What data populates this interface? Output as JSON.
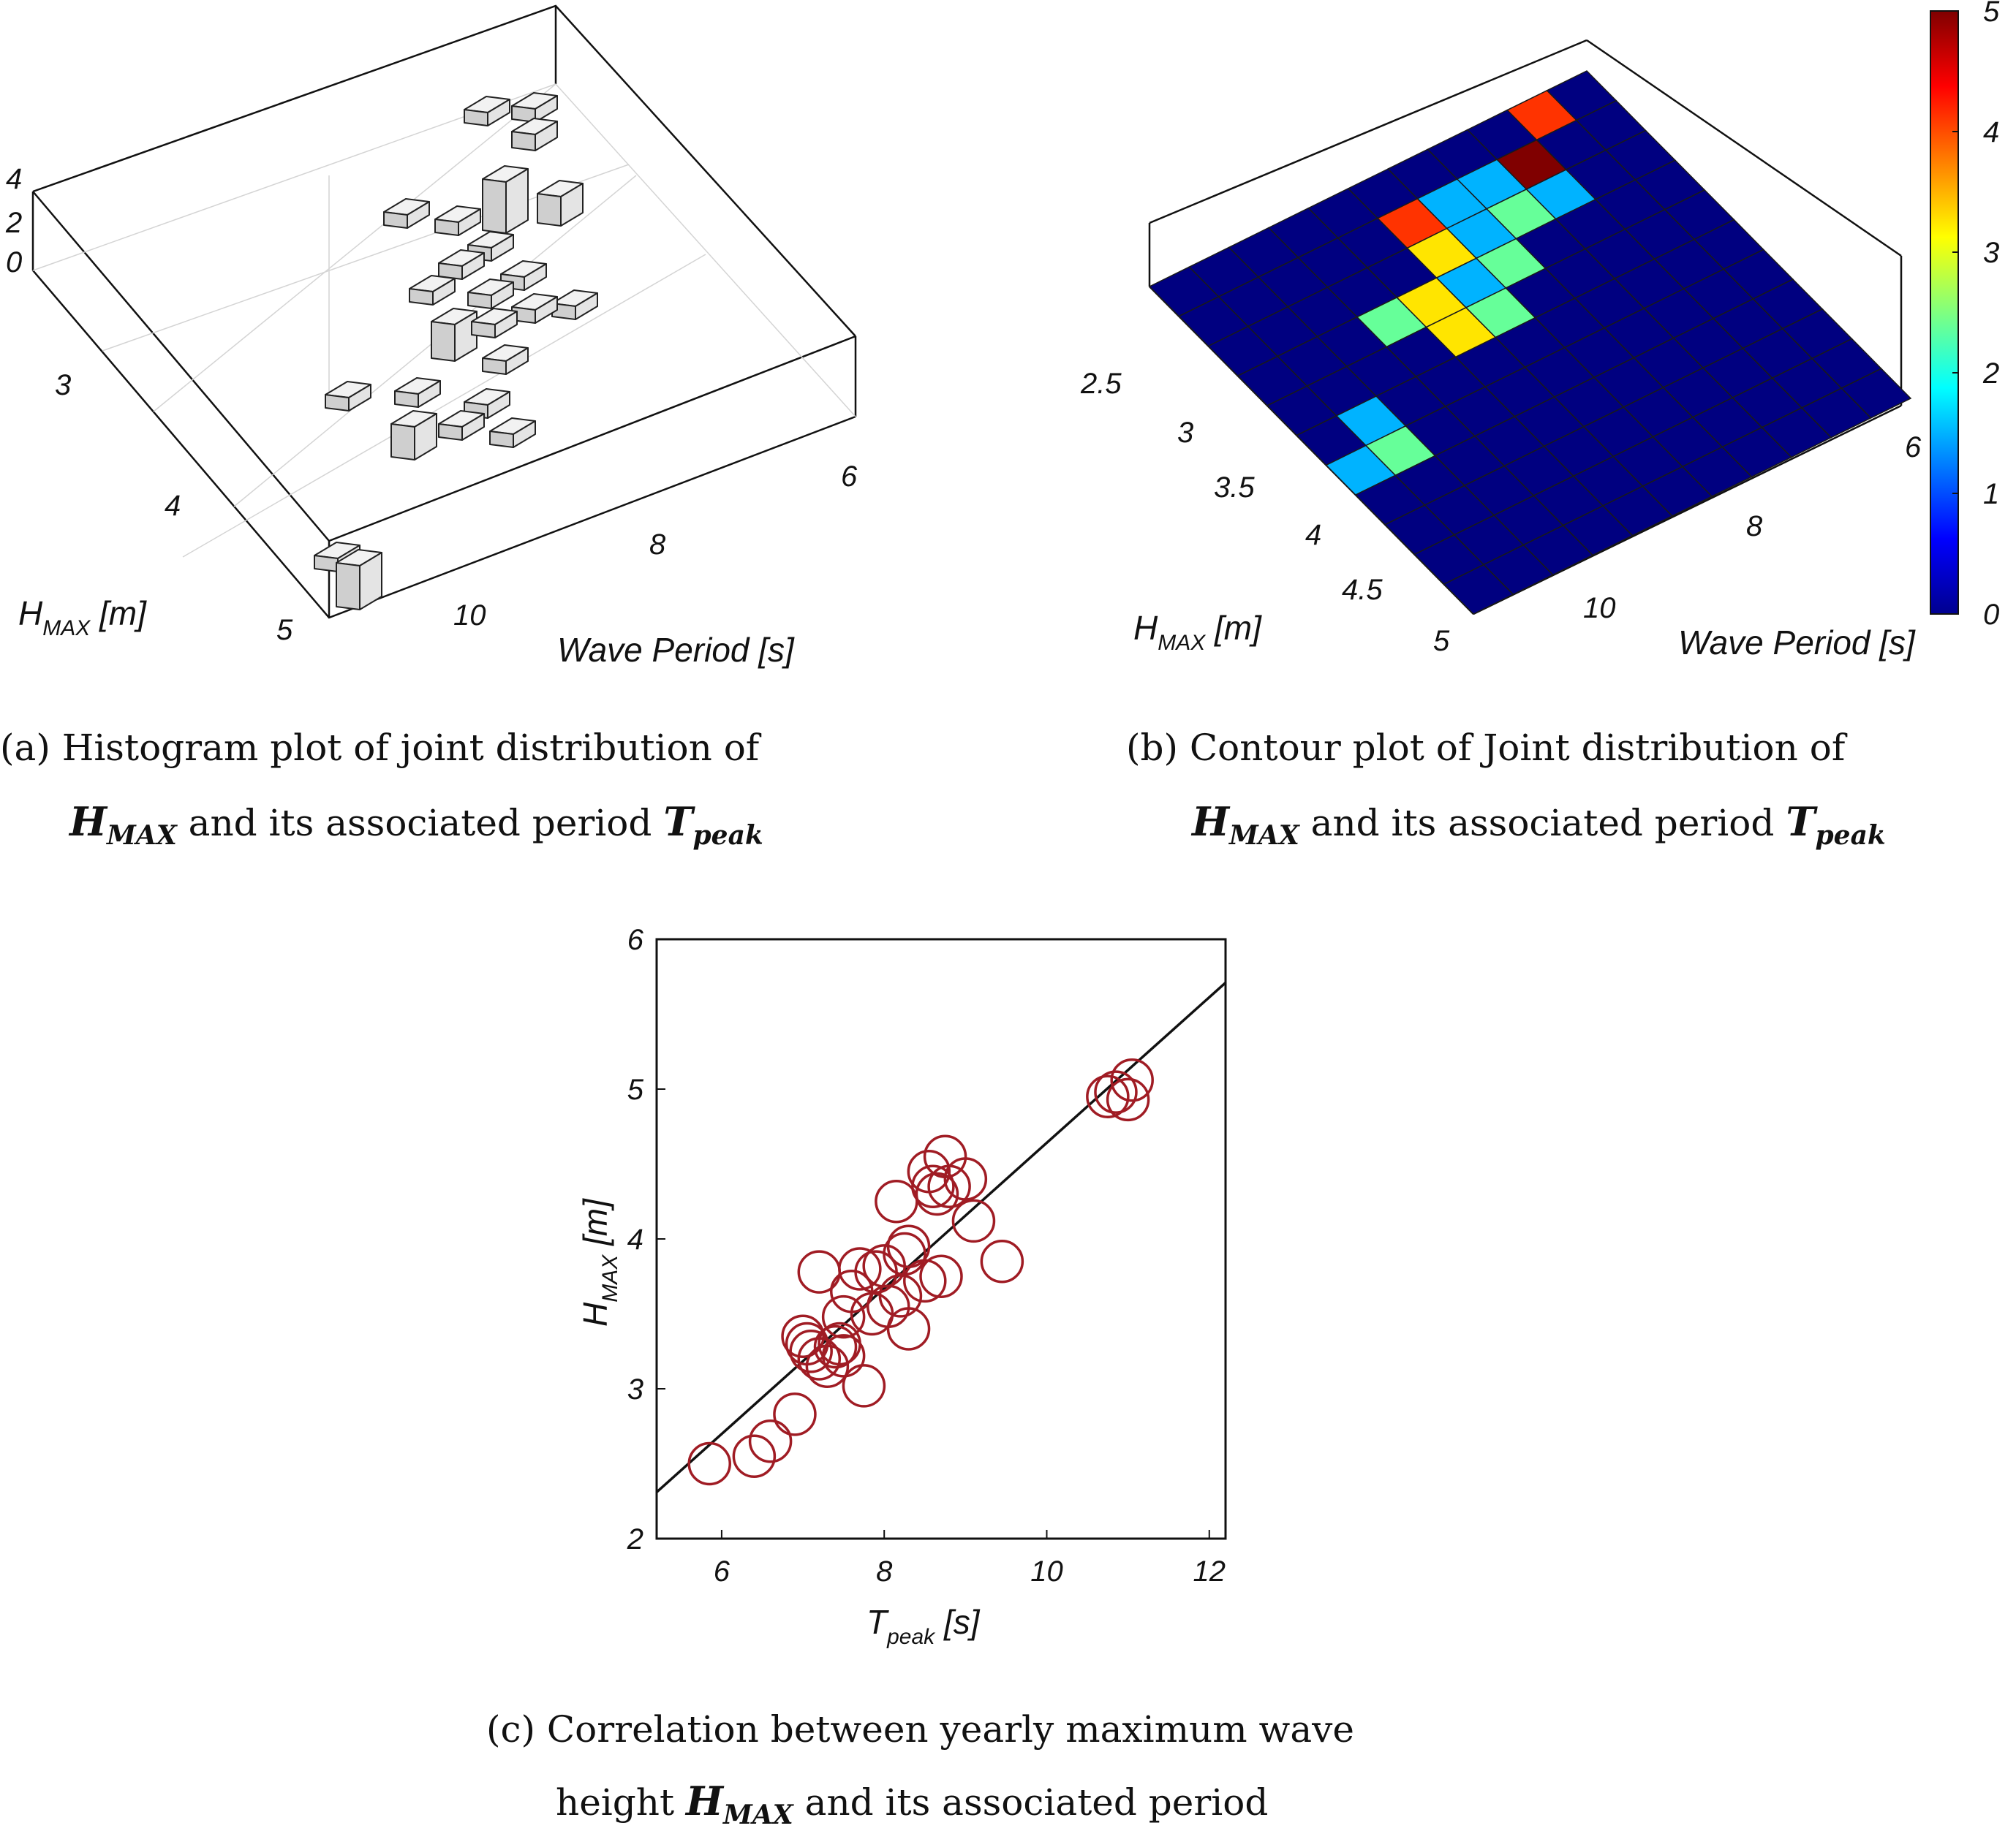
{
  "chart_data": [
    {
      "panel": "a",
      "type": "bar3d",
      "caption_line1": "(a) Histogram plot of joint distribution of",
      "caption_line2_sym": "H",
      "caption_line2_sub": "MAX",
      "caption_line2_mid": " and its associated period ",
      "caption_line2_sym2": "T",
      "caption_line2_sub2": "peak",
      "xlabel": "Wave Period [s]",
      "ylabel_sym": "H",
      "ylabel_sub": "MAX",
      "ylabel_unit": " [m]",
      "x_ticks": [
        "6",
        "8",
        "10"
      ],
      "y_ticks": [
        "3",
        "4",
        "5"
      ],
      "z_ticks": [
        "0",
        "2",
        "4"
      ],
      "zlim": [
        0,
        4
      ],
      "bar_fill": "#cfcfcf"
    },
    {
      "panel": "b",
      "type": "heatmap",
      "caption_line1": "(b) Contour plot of Joint distribution of",
      "caption_line2_sym": "H",
      "caption_line2_sub": "MAX",
      "caption_line2_mid": " and its associated period ",
      "caption_line2_sym2": "T",
      "caption_line2_sub2": "peak",
      "xlabel": "Wave Period [s]",
      "ylabel_sym": "H",
      "ylabel_sub": "MAX",
      "ylabel_unit": " [m]",
      "x_ticks": [
        "6",
        "8",
        "10"
      ],
      "y_ticks": [
        "2.5",
        "3",
        "3.5",
        "4",
        "4.5",
        "5"
      ],
      "colorbar_ticks": [
        "0",
        "1",
        "2",
        "3",
        "4",
        "5"
      ],
      "colorbar_range": [
        0,
        5
      ],
      "colormap": "jet",
      "grid_size": [
        11,
        11
      ],
      "counts": [
        [
          0,
          0,
          0,
          0,
          0,
          0,
          0,
          0,
          0,
          0,
          0
        ],
        [
          0,
          0,
          0,
          0,
          0,
          0,
          0,
          0,
          0,
          0,
          0
        ],
        [
          0,
          0,
          0,
          0,
          0,
          0,
          0,
          0,
          0,
          0,
          0
        ],
        [
          0,
          0,
          0,
          0,
          0,
          0,
          0,
          0,
          0,
          0,
          0
        ],
        [
          0,
          0,
          0,
          0,
          0,
          0,
          0,
          0,
          0,
          0,
          0
        ],
        [
          0,
          0,
          0,
          0,
          0,
          0,
          0,
          0,
          0,
          0,
          0
        ],
        [
          0,
          0,
          0,
          0,
          0,
          0,
          0,
          0,
          0,
          0,
          0
        ],
        [
          0,
          0,
          0,
          0,
          0,
          0,
          0,
          0,
          0,
          0,
          0
        ],
        [
          0,
          0,
          0,
          0,
          0,
          0,
          0,
          0,
          0,
          0,
          0
        ],
        [
          0,
          0,
          0,
          0,
          0,
          0,
          0,
          0,
          0,
          0,
          0
        ],
        [
          0,
          0,
          0,
          0,
          0,
          0,
          0,
          0,
          0,
          0,
          0
        ]
      ],
      "highlight_cells": [
        {
          "col": 0,
          "row": 6,
          "value": 1
        },
        {
          "col": 1,
          "row": 6,
          "value": 2
        },
        {
          "col": 1,
          "row": 5,
          "value": 1
        },
        {
          "col": 3,
          "row": 3,
          "value": 2
        },
        {
          "col": 4,
          "row": 4,
          "value": 3
        },
        {
          "col": 5,
          "row": 4,
          "value": 2
        },
        {
          "col": 4,
          "row": 3,
          "value": 3
        },
        {
          "col": 5,
          "row": 3,
          "value": 1
        },
        {
          "col": 5,
          "row": 2,
          "value": 3
        },
        {
          "col": 6,
          "row": 3,
          "value": 2
        },
        {
          "col": 6,
          "row": 2,
          "value": 1
        },
        {
          "col": 5,
          "row": 1,
          "value": 4
        },
        {
          "col": 6,
          "row": 1,
          "value": 1
        },
        {
          "col": 7,
          "row": 2,
          "value": 2
        },
        {
          "col": 7,
          "row": 1,
          "value": 1
        },
        {
          "col": 8,
          "row": 1,
          "value": 5
        },
        {
          "col": 8,
          "row": 2,
          "value": 1
        },
        {
          "col": 9,
          "row": 0,
          "value": 4
        }
      ]
    },
    {
      "panel": "c",
      "type": "scatter",
      "caption_line1": "(c) Correlation between yearly maximum wave",
      "caption_line2_pre": "height ",
      "caption_line2_sym": "H",
      "caption_line2_sub": "MAX",
      "caption_line2_post": " and its associated period",
      "xlabel_sym": "T",
      "xlabel_sub": "peak",
      "xlabel_unit": " [s]",
      "ylabel_sym": "H",
      "ylabel_sub": "MAX",
      "ylabel_unit": " [m]",
      "xlim": [
        5.2,
        12.2
      ],
      "ylim": [
        2,
        6
      ],
      "x_ticks": [
        6,
        8,
        10,
        12
      ],
      "y_ticks": [
        2,
        3,
        4,
        5,
        6
      ],
      "marker_color": "#a01c24",
      "line_color": "#000000",
      "fit_line": {
        "x": [
          5.2,
          12.2
        ],
        "y": [
          2.31,
          5.71
        ]
      },
      "points": [
        {
          "x": 5.85,
          "y": 2.5
        },
        {
          "x": 6.4,
          "y": 2.55
        },
        {
          "x": 6.6,
          "y": 2.65
        },
        {
          "x": 6.9,
          "y": 2.83
        },
        {
          "x": 7.0,
          "y": 3.35
        },
        {
          "x": 7.05,
          "y": 3.3
        },
        {
          "x": 7.1,
          "y": 3.25
        },
        {
          "x": 7.2,
          "y": 3.2
        },
        {
          "x": 7.3,
          "y": 3.15
        },
        {
          "x": 7.4,
          "y": 3.28
        },
        {
          "x": 7.5,
          "y": 3.22
        },
        {
          "x": 7.45,
          "y": 3.3
        },
        {
          "x": 7.2,
          "y": 3.78
        },
        {
          "x": 7.5,
          "y": 3.48
        },
        {
          "x": 7.6,
          "y": 3.65
        },
        {
          "x": 7.7,
          "y": 3.8
        },
        {
          "x": 7.75,
          "y": 3.02
        },
        {
          "x": 7.85,
          "y": 3.5
        },
        {
          "x": 7.9,
          "y": 3.78
        },
        {
          "x": 8.0,
          "y": 3.82
        },
        {
          "x": 8.05,
          "y": 3.55
        },
        {
          "x": 8.15,
          "y": 4.25
        },
        {
          "x": 8.2,
          "y": 3.62
        },
        {
          "x": 8.25,
          "y": 3.9
        },
        {
          "x": 8.3,
          "y": 3.95
        },
        {
          "x": 8.3,
          "y": 3.4
        },
        {
          "x": 8.5,
          "y": 3.72
        },
        {
          "x": 8.55,
          "y": 4.45
        },
        {
          "x": 8.6,
          "y": 4.35
        },
        {
          "x": 8.65,
          "y": 4.3
        },
        {
          "x": 8.7,
          "y": 3.75
        },
        {
          "x": 8.75,
          "y": 4.55
        },
        {
          "x": 8.8,
          "y": 4.35
        },
        {
          "x": 9.0,
          "y": 4.4
        },
        {
          "x": 9.1,
          "y": 4.12
        },
        {
          "x": 9.45,
          "y": 3.85
        },
        {
          "x": 10.75,
          "y": 4.95
        },
        {
          "x": 10.85,
          "y": 4.98
        },
        {
          "x": 11.0,
          "y": 4.93
        },
        {
          "x": 11.05,
          "y": 5.06
        }
      ]
    }
  ]
}
